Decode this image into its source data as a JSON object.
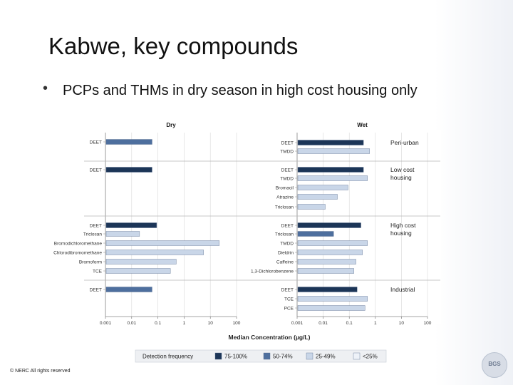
{
  "slide": {
    "title": "Kabwe, key compounds",
    "bullet": "PCPs and THMs in dry season in high cost housing only",
    "footer": "© NERC All rights reserved",
    "logo_text": "BGS"
  },
  "chart_data": {
    "type": "bar",
    "orientation": "horizontal",
    "x_scale": "log",
    "xlim": [
      0.001,
      100
    ],
    "xticks": [
      "0.001",
      "0.01",
      "0.1",
      "1",
      "10",
      "100"
    ],
    "xlabel": "Median Concentration (µg/L)",
    "grid": true,
    "colors": {
      "75-100%": "#1c3557",
      "50-74%": "#4e6f9e",
      "25-49%": "#c9d6e8",
      "<25%": "#eef2f8"
    },
    "legend": {
      "title": "Detection frequency",
      "placement": "bottom",
      "entries": [
        "75-100%",
        "50-74%",
        "25-49%",
        "<25%"
      ]
    },
    "panels": [
      {
        "title": "Dry",
        "groups": [
          {
            "name": "",
            "items": [
              {
                "label": "DEET",
                "value": 0.06,
                "freq": "50-74%"
              }
            ]
          },
          {
            "name": "",
            "items": [
              {
                "label": "DEET",
                "value": 0.06,
                "freq": "75-100%"
              }
            ]
          },
          {
            "name": "",
            "items": [
              {
                "label": "DEET",
                "value": 0.09,
                "freq": "75-100%"
              },
              {
                "label": "Triclosan",
                "value": 0.02,
                "freq": "25-49%"
              },
              {
                "label": "Bromodichloromethane",
                "value": 22,
                "freq": "25-49%"
              },
              {
                "label": "Chlorodibromomethane",
                "value": 5.5,
                "freq": "25-49%"
              },
              {
                "label": "Bromoform",
                "value": 0.5,
                "freq": "25-49%"
              },
              {
                "label": "TCE",
                "value": 0.3,
                "freq": "25-49%"
              }
            ]
          },
          {
            "name": "",
            "items": [
              {
                "label": "DEET",
                "value": 0.06,
                "freq": "50-74%"
              }
            ]
          }
        ]
      },
      {
        "title": "Wet",
        "groups": [
          {
            "name": "Peri-urban",
            "items": [
              {
                "label": "DEET",
                "value": 0.35,
                "freq": "75-100%"
              },
              {
                "label": "TMDD",
                "value": 0.6,
                "freq": "25-49%"
              }
            ]
          },
          {
            "name": "Low cost housing",
            "items": [
              {
                "label": "DEET",
                "value": 0.35,
                "freq": "75-100%"
              },
              {
                "label": "TMDD",
                "value": 0.5,
                "freq": "25-49%"
              },
              {
                "label": "Bromacil",
                "value": 0.09,
                "freq": "25-49%"
              },
              {
                "label": "Atrazine",
                "value": 0.035,
                "freq": "25-49%"
              },
              {
                "label": "Triclosan",
                "value": 0.012,
                "freq": "25-49%"
              }
            ]
          },
          {
            "name": "High cost housing",
            "items": [
              {
                "label": "DEET",
                "value": 0.28,
                "freq": "75-100%"
              },
              {
                "label": "Triclosan",
                "value": 0.025,
                "freq": "50-74%"
              },
              {
                "label": "TMDD",
                "value": 0.5,
                "freq": "25-49%"
              },
              {
                "label": "Dieldrin",
                "value": 0.32,
                "freq": "25-49%"
              },
              {
                "label": "Caffeine",
                "value": 0.18,
                "freq": "25-49%"
              },
              {
                "label": "1,3-Dichlorobenzene",
                "value": 0.15,
                "freq": "25-49%"
              }
            ]
          },
          {
            "name": "Industrial",
            "items": [
              {
                "label": "DEET",
                "value": 0.2,
                "freq": "75-100%"
              },
              {
                "label": "TCE",
                "value": 0.5,
                "freq": "25-49%"
              },
              {
                "label": "PCE",
                "value": 0.4,
                "freq": "25-49%"
              }
            ]
          }
        ]
      }
    ]
  }
}
